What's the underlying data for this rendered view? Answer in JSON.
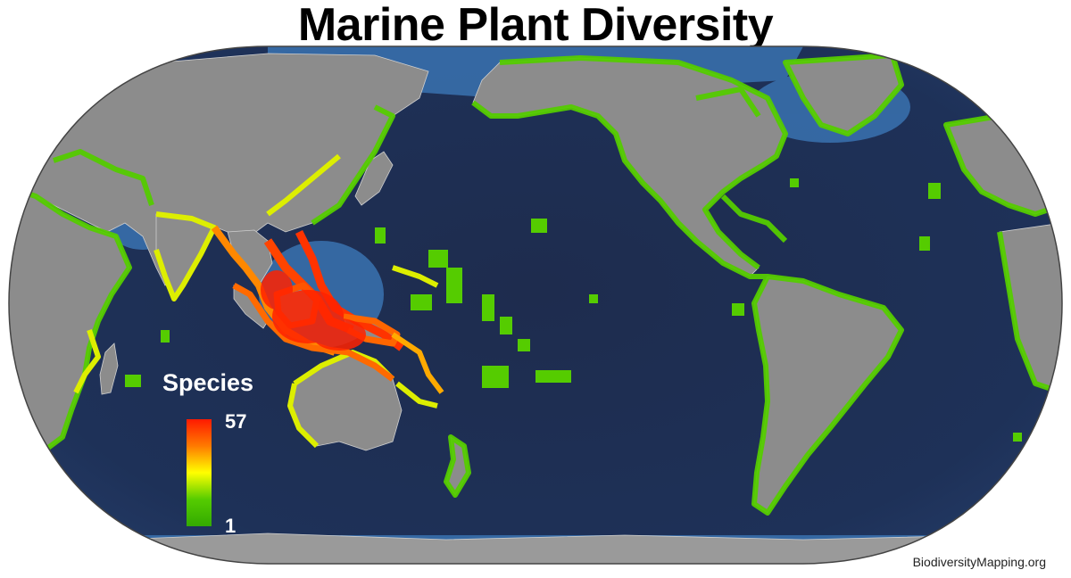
{
  "map": {
    "title": "Marine Plant Diversity",
    "credit": "BiodiversityMapping.org",
    "legend": {
      "title": "Species",
      "max_label": "57",
      "min_label": "1",
      "gradient_colors": [
        "#ff1a00",
        "#ff7a00",
        "#ffff00",
        "#55cc00",
        "#33aa00"
      ]
    },
    "colors": {
      "ocean_deep": "#1c2a4a",
      "ocean_shelf": "#3a72b0",
      "land": "#8a8a8a",
      "low_richness": "#55cc00",
      "mid_richness": "#ffee00",
      "high_richness": "#ff3300"
    }
  }
}
